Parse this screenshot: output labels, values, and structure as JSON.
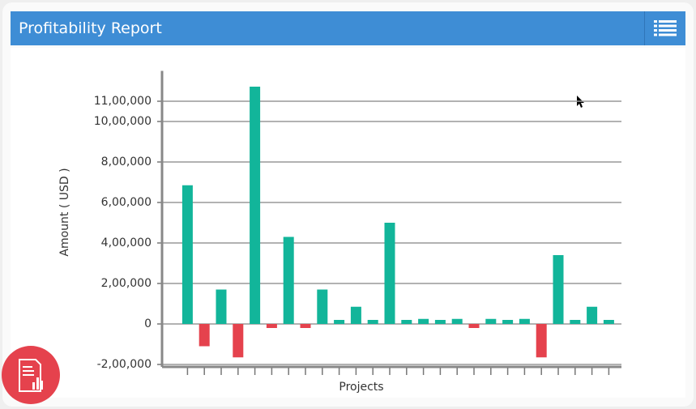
{
  "header": {
    "title": "Profitability Report"
  },
  "chart_data": {
    "type": "bar",
    "ylabel": "Amount ( USD )",
    "xlabel": "Projects",
    "categories": [
      null,
      null,
      null,
      null,
      null,
      null,
      null,
      null,
      null,
      null,
      null,
      null,
      null,
      null,
      null,
      null,
      null,
      null,
      null,
      null,
      null,
      null,
      null,
      null,
      null,
      null
    ],
    "values": [
      685000,
      -110000,
      170000,
      -165000,
      1172000,
      -20000,
      430000,
      -20000,
      170000,
      20000,
      85000,
      20000,
      500000,
      20000,
      25000,
      20000,
      25000,
      -20000,
      25000,
      20000,
      25000,
      -165000,
      340000,
      20000,
      85000,
      20000
    ],
    "positive_color": "#12b59a",
    "negative_color": "#e5424d",
    "ylim": [
      -200000,
      1250000
    ],
    "yticks": [
      {
        "value": -200000,
        "label": "-2,00,000"
      },
      0,
      {
        "value": 200000,
        "label": "2,00,000"
      },
      {
        "value": 400000,
        "label": "4,00,000"
      },
      {
        "value": 600000,
        "label": "6,00,000"
      },
      {
        "value": 800000,
        "label": "8,00,000"
      },
      {
        "value": 1000000,
        "label": "10,00,000"
      },
      {
        "value": 1100000,
        "label": "11,00,000"
      }
    ],
    "grid": true
  }
}
